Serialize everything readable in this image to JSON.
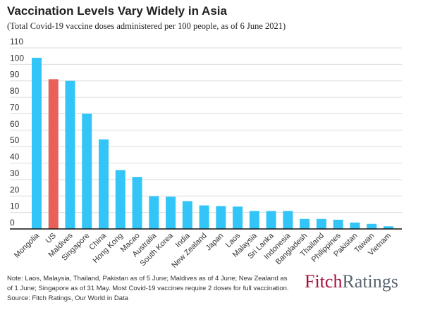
{
  "title": "Vaccination Levels Vary Widely in Asia",
  "subtitle": "(Total Covid-19 vaccine doses administered per 100 people, as of 6 June 2021)",
  "note": "Note: Laos, Malaysia, Thailand, Pakistan as of 5 June; Maldives as of 4 June; New Zealand as of 1 June; Singapore as of 31 May. Most Covid-19 vaccines require 2 doses for full vaccination.",
  "source": "Source: Fitch Ratings, Our World in Data",
  "logo": {
    "part1": "Fitch",
    "part2": "Ratings"
  },
  "colors": {
    "bar": "#33c5f7",
    "highlight": "#e8605a",
    "grid": "#dddddd"
  },
  "chart_data": {
    "type": "bar",
    "title": "Vaccination Levels Vary Widely in Asia",
    "subtitle": "(Total Covid-19 vaccine doses administered per 100 people, as of 6 June 2021)",
    "categories": [
      "Mongolia",
      "US",
      "Maldives",
      "Singapore",
      "China",
      "Hong Kong",
      "Macao",
      "Australia",
      "South Korea",
      "India",
      "New Zealand",
      "Japan",
      "Laos",
      "Malaysia",
      "Sri Lanka",
      "Indonesia",
      "Bangladesh",
      "Thailand",
      "Philippines",
      "Pakistan",
      "Taiwan",
      "Vietnam"
    ],
    "values": [
      104,
      91,
      90,
      70,
      54.4,
      35.8,
      31.6,
      19.9,
      19.6,
      16.9,
      14.3,
      13.9,
      13.6,
      10.9,
      10.9,
      10.9,
      6.1,
      6.1,
      5.6,
      3.9,
      3.1,
      1.6
    ],
    "highlight": "US",
    "ylim": [
      0,
      110
    ],
    "yticks": [
      0,
      10,
      20,
      30,
      40,
      50,
      60,
      70,
      80,
      90,
      100,
      110
    ],
    "grid": true
  }
}
